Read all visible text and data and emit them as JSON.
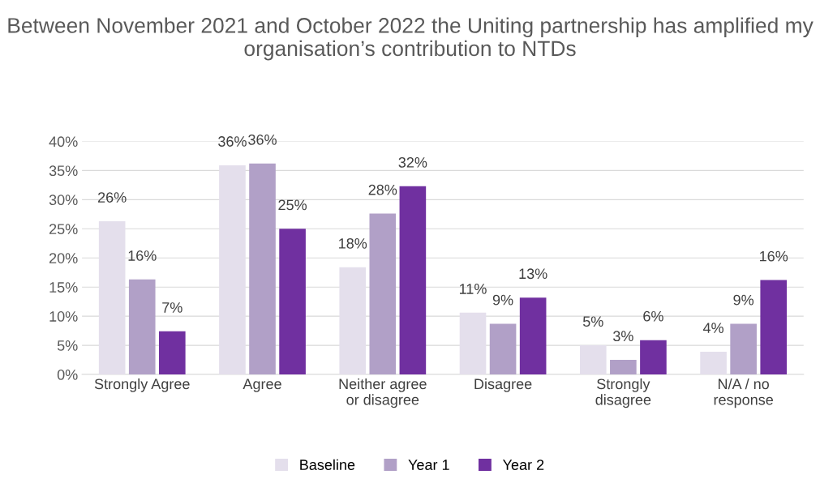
{
  "chart_data": {
    "type": "bar",
    "title": "Between November 2021 and October 2022 the Uniting partnership has amplified my organisation’s contribution to NTDs",
    "categories": [
      "Strongly Agree",
      "Agree",
      "Neither agree\nor disagree",
      "Disagree",
      "Strongly\ndisagree",
      "N/A / no\nresponse"
    ],
    "series": [
      {
        "name": "Baseline",
        "color": "#e4dfec",
        "values": [
          26.3,
          35.9,
          18.4,
          10.6,
          5.0,
          3.9
        ],
        "value_labels": [
          "26%",
          "36%",
          "18%",
          "11%",
          "5%",
          "4%"
        ]
      },
      {
        "name": "Year 1",
        "color": "#b1a0c7",
        "values": [
          16.3,
          36.2,
          27.6,
          8.7,
          2.5,
          8.7
        ],
        "value_labels": [
          "16%",
          "36%",
          "28%",
          "9%",
          "3%",
          "9%"
        ]
      },
      {
        "name": "Year 2",
        "color": "#7030a0",
        "values": [
          7.4,
          25.0,
          32.3,
          13.2,
          5.9,
          16.2
        ],
        "value_labels": [
          "7%",
          "25%",
          "32%",
          "13%",
          "6%",
          "16%"
        ]
      }
    ],
    "ylim": [
      0,
      40
    ],
    "yticks": [
      {
        "value": 0,
        "label": "0%"
      },
      {
        "value": 5,
        "label": "5%"
      },
      {
        "value": 10,
        "label": "10%"
      },
      {
        "value": 15,
        "label": "15%"
      },
      {
        "value": 20,
        "label": "20%"
      },
      {
        "value": 25,
        "label": "25%"
      },
      {
        "value": 30,
        "label": "30%"
      },
      {
        "value": 35,
        "label": "35%"
      },
      {
        "value": 40,
        "label": "40%"
      }
    ],
    "grid": "y",
    "legend": "bottom"
  }
}
